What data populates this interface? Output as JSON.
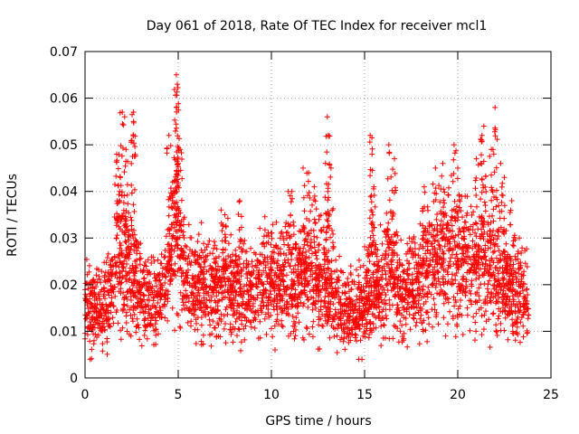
{
  "chart_data": {
    "type": "scatter",
    "title": "Day 061 of 2018, Rate Of TEC Index for receiver mcl1",
    "xlabel": "GPS time / hours",
    "ylabel": "ROTI / TECUs",
    "xlim": [
      0,
      25
    ],
    "ylim": [
      0,
      0.07
    ],
    "x_ticks": [
      "0",
      "5",
      "10",
      "15",
      "20",
      "25"
    ],
    "y_ticks": [
      "0",
      "0.01",
      "0.02",
      "0.03",
      "0.04",
      "0.05",
      "0.06",
      "0.07"
    ],
    "grid": true,
    "marker": "+",
    "color": "#ff0000",
    "series": [
      {
        "name": "ROTI",
        "x_range": [
          0,
          23.8
        ],
        "trend": [
          [
            0.0,
            0.016
          ],
          [
            0.5,
            0.014
          ],
          [
            1.0,
            0.015
          ],
          [
            1.5,
            0.02
          ],
          [
            1.8,
            0.027
          ],
          [
            2.2,
            0.024
          ],
          [
            2.6,
            0.02
          ],
          [
            3.0,
            0.017
          ],
          [
            3.5,
            0.016
          ],
          [
            4.0,
            0.016
          ],
          [
            4.5,
            0.024
          ],
          [
            4.8,
            0.03
          ],
          [
            5.2,
            0.023
          ],
          [
            5.7,
            0.02
          ],
          [
            6.0,
            0.019
          ],
          [
            6.5,
            0.02
          ],
          [
            7.0,
            0.019
          ],
          [
            7.5,
            0.021
          ],
          [
            8.0,
            0.019
          ],
          [
            8.5,
            0.019
          ],
          [
            9.0,
            0.018
          ],
          [
            9.5,
            0.02
          ],
          [
            10.0,
            0.021
          ],
          [
            10.5,
            0.02
          ],
          [
            11.0,
            0.02
          ],
          [
            11.5,
            0.022
          ],
          [
            12.0,
            0.023
          ],
          [
            12.5,
            0.022
          ],
          [
            13.0,
            0.02
          ],
          [
            13.5,
            0.016
          ],
          [
            14.0,
            0.014
          ],
          [
            14.5,
            0.014
          ],
          [
            15.0,
            0.016
          ],
          [
            15.5,
            0.019
          ],
          [
            16.0,
            0.02
          ],
          [
            16.5,
            0.022
          ],
          [
            17.0,
            0.018
          ],
          [
            17.5,
            0.019
          ],
          [
            18.0,
            0.022
          ],
          [
            18.5,
            0.024
          ],
          [
            19.0,
            0.025
          ],
          [
            19.5,
            0.025
          ],
          [
            20.0,
            0.025
          ],
          [
            20.5,
            0.024
          ],
          [
            21.0,
            0.024
          ],
          [
            21.5,
            0.025
          ],
          [
            22.0,
            0.022
          ],
          [
            22.5,
            0.02
          ],
          [
            23.0,
            0.019
          ],
          [
            23.5,
            0.018
          ],
          [
            23.8,
            0.018
          ]
        ],
        "spikes": [
          [
            1.7,
            0.048
          ],
          [
            1.9,
            0.043
          ],
          [
            2.0,
            0.057
          ],
          [
            2.2,
            0.049
          ],
          [
            2.6,
            0.057
          ],
          [
            2.6,
            0.055
          ],
          [
            4.5,
            0.052
          ],
          [
            4.9,
            0.065
          ],
          [
            4.95,
            0.063
          ],
          [
            4.9,
            0.058
          ],
          [
            5.1,
            0.049
          ],
          [
            4.7,
            0.042
          ],
          [
            5.0,
            0.046
          ],
          [
            7.3,
            0.036
          ],
          [
            7.5,
            0.035
          ],
          [
            8.3,
            0.038
          ],
          [
            10.9,
            0.04
          ],
          [
            11.1,
            0.04
          ],
          [
            11.7,
            0.045
          ],
          [
            12.3,
            0.041
          ],
          [
            12.0,
            0.044
          ],
          [
            13.0,
            0.056
          ],
          [
            13.05,
            0.052
          ],
          [
            13.2,
            0.045
          ],
          [
            15.3,
            0.052
          ],
          [
            15.4,
            0.048
          ],
          [
            15.5,
            0.041
          ],
          [
            16.3,
            0.05
          ],
          [
            16.6,
            0.047
          ],
          [
            17.4,
            0.03
          ],
          [
            18.2,
            0.041
          ],
          [
            18.8,
            0.045
          ],
          [
            19.2,
            0.046
          ],
          [
            19.8,
            0.05
          ],
          [
            20.0,
            0.045
          ],
          [
            20.4,
            0.039
          ],
          [
            21.0,
            0.047
          ],
          [
            21.3,
            0.052
          ],
          [
            21.4,
            0.054
          ],
          [
            21.8,
            0.049
          ],
          [
            22.0,
            0.058
          ],
          [
            22.3,
            0.046
          ],
          [
            22.5,
            0.043
          ],
          [
            22.9,
            0.038
          ],
          [
            23.3,
            0.03
          ]
        ]
      }
    ]
  }
}
